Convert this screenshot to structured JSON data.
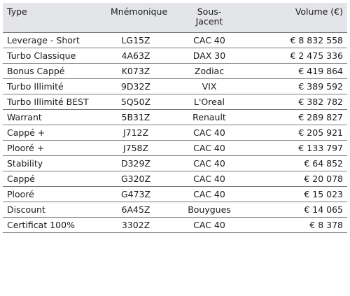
{
  "table": {
    "headers": {
      "type": "Type",
      "mnemonique": "Mnémonique",
      "sous_jacent": "Sous-\nJacent",
      "volume": "Volume (€)"
    },
    "rows": [
      {
        "type": "Leverage - Short",
        "mnemonique": "LG15Z",
        "sous_jacent": "CAC 40",
        "volume": "€ 8 832 558"
      },
      {
        "type": "Turbo Classique",
        "mnemonique": "4A63Z",
        "sous_jacent": "DAX 30",
        "volume": "€ 2 475 336"
      },
      {
        "type": "Bonus Cappé",
        "mnemonique": "K073Z",
        "sous_jacent": "Zodiac",
        "volume": "€ 419 864"
      },
      {
        "type": "Turbo Illimité",
        "mnemonique": "9D32Z",
        "sous_jacent": "VIX",
        "volume": "€ 389 592"
      },
      {
        "type": "Turbo Illimité BEST",
        "mnemonique": "5Q50Z",
        "sous_jacent": "L'Oreal",
        "volume": "€ 382 782"
      },
      {
        "type": "Warrant",
        "mnemonique": "5B31Z",
        "sous_jacent": "Renault",
        "volume": "€ 289 827"
      },
      {
        "type": "Cappé +",
        "mnemonique": "J712Z",
        "sous_jacent": "CAC 40",
        "volume": "€ 205 921"
      },
      {
        "type": "Plooré +",
        "mnemonique": "J758Z",
        "sous_jacent": "CAC 40",
        "volume": "€ 133 797"
      },
      {
        "type": "Stability",
        "mnemonique": "D329Z",
        "sous_jacent": "CAC 40",
        "volume": "€ 64 852"
      },
      {
        "type": "Cappé",
        "mnemonique": "G320Z",
        "sous_jacent": "CAC 40",
        "volume": "€ 20 078"
      },
      {
        "type": "Plooré",
        "mnemonique": "G473Z",
        "sous_jacent": "CAC 40",
        "volume": "€ 15 023"
      },
      {
        "type": "Discount",
        "mnemonique": "6A45Z",
        "sous_jacent": "Bouygues",
        "volume": "€ 14 065"
      },
      {
        "type": "Certificat 100%",
        "mnemonique": "3302Z",
        "sous_jacent": "CAC 40",
        "volume": "€ 8 378"
      }
    ]
  }
}
